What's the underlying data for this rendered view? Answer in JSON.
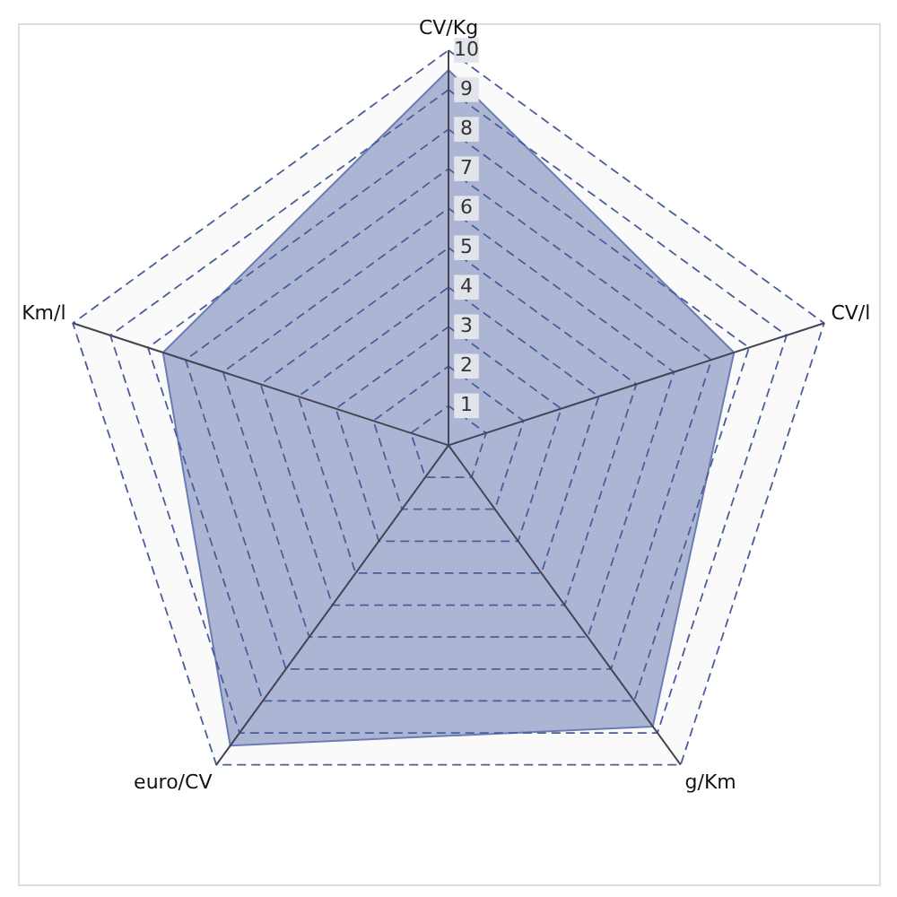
{
  "chart_data": {
    "type": "radar",
    "categories": [
      "CV/Kg",
      "CV/l",
      "g/Km",
      "euro/CV",
      "Km/l"
    ],
    "series": [
      {
        "color": "#6b7db4",
        "values": [
          9.5,
          7.6,
          8.8,
          9.4,
          7.6
        ]
      }
    ],
    "ylim": [
      0,
      10
    ],
    "yticks": [
      1,
      2,
      3,
      4,
      5,
      6,
      7,
      8,
      9,
      10
    ],
    "grid": true,
    "line_style": "solid",
    "marker": "none"
  }
}
